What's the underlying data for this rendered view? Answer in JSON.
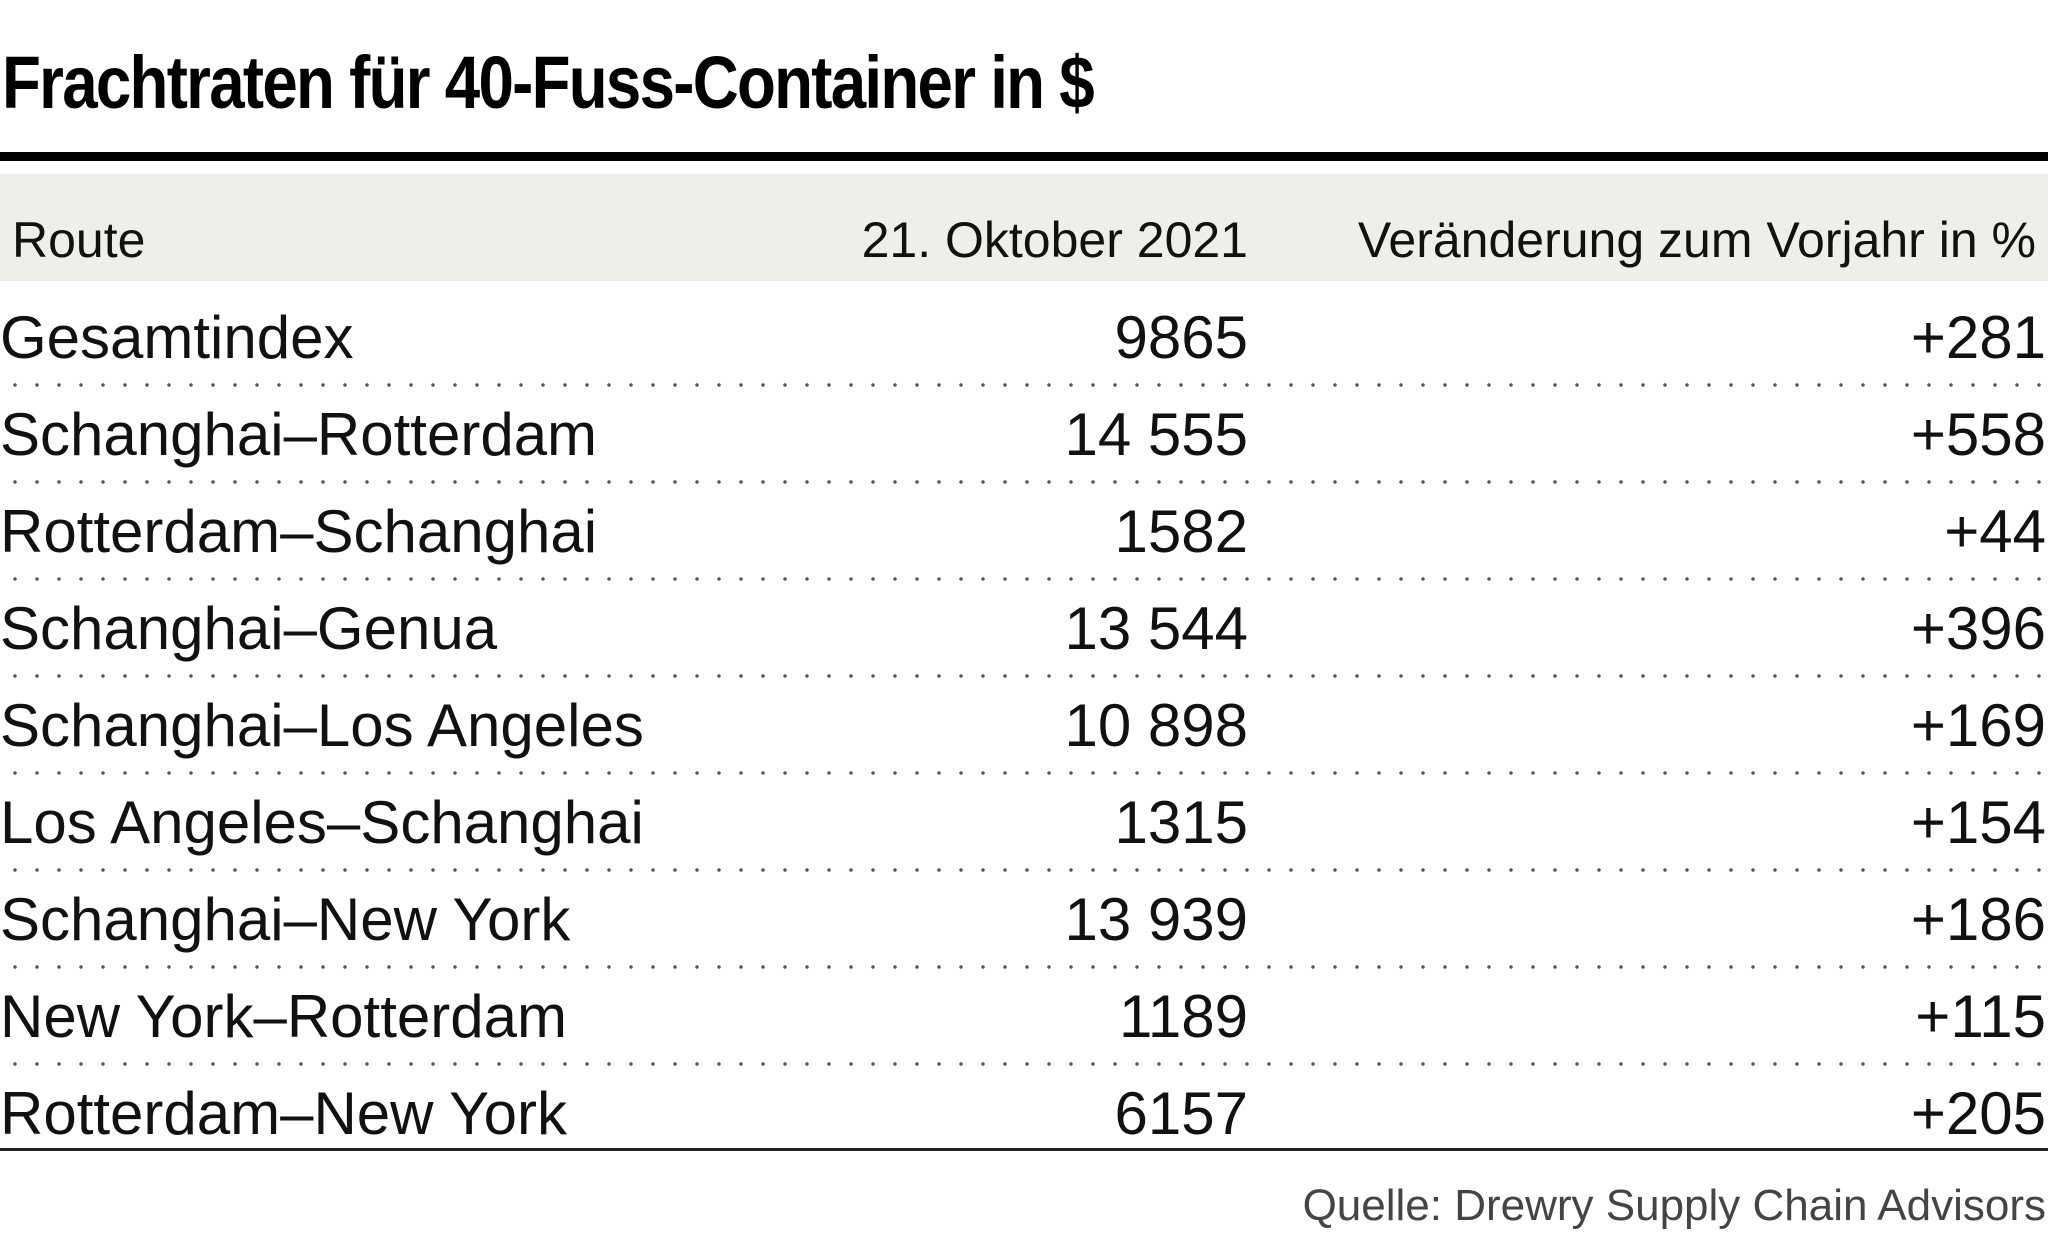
{
  "chart_data": {
    "type": "table",
    "title": "Frachtraten für 40-Fuss-Container in $",
    "columns": [
      "Route",
      "21. Oktober 2021",
      "Veränderung zum Vorjahr in %"
    ],
    "rows": [
      {
        "route": "Gesamtindex",
        "rate": "9865",
        "change": "+281"
      },
      {
        "route": "Schanghai–Rotterdam",
        "rate": "14 555",
        "change": "+558"
      },
      {
        "route": "Rotterdam–Schanghai",
        "rate": "1582",
        "change": "+44"
      },
      {
        "route": "Schanghai–Genua",
        "rate": "13 544",
        "change": "+396"
      },
      {
        "route": "Schanghai–Los Angeles",
        "rate": "10 898",
        "change": "+169"
      },
      {
        "route": "Los Angeles–Schanghai",
        "rate": "1315",
        "change": "+154"
      },
      {
        "route": "Schanghai–New York",
        "rate": "13 939",
        "change": "+186"
      },
      {
        "route": "New York–Rotterdam",
        "rate": "1189",
        "change": "+115"
      },
      {
        "route": "Rotterdam–New York",
        "rate": "6157",
        "change": "+205"
      }
    ],
    "source": "Quelle: Drewry Supply Chain Advisors"
  }
}
